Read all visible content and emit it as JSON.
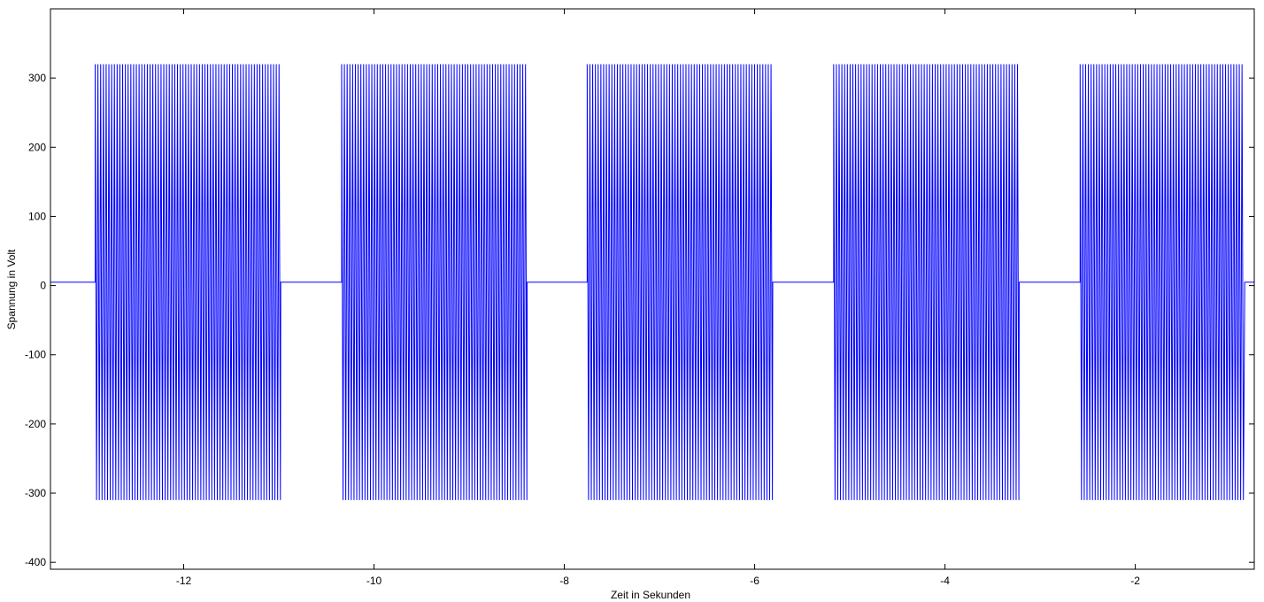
{
  "chart_data": {
    "type": "line",
    "xlabel": "Zeit in Sekunden",
    "ylabel": "Spannung in Volt",
    "xlim": [
      -13.4,
      -0.75
    ],
    "ylim": [
      -410,
      400
    ],
    "x_ticks": [
      -12,
      -10,
      -8,
      -6,
      -4,
      -2
    ],
    "x_tick_labels": [
      "-12",
      "-10",
      "-8",
      "-6",
      "-4",
      "-2"
    ],
    "y_ticks": [
      300,
      200,
      100,
      0,
      -100,
      -200,
      -300,
      -400
    ],
    "y_tick_labels": [
      "300",
      "200",
      "100",
      "0",
      "-100",
      "-200",
      "-300",
      "-400"
    ],
    "grid": false,
    "series": [
      {
        "color": "#0000ff",
        "baseline": 5,
        "peak_max": 320,
        "peak_min": -310,
        "bursts": [
          {
            "start": -12.93,
            "end": -10.98
          },
          {
            "start": -10.34,
            "end": -8.39
          },
          {
            "start": -7.76,
            "end": -5.81
          },
          {
            "start": -5.17,
            "end": -3.22
          },
          {
            "start": -2.58,
            "end": -0.85
          }
        ]
      }
    ]
  }
}
